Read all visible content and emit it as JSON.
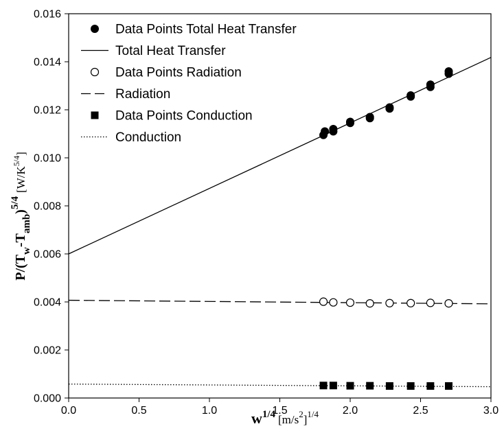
{
  "chart_data": {
    "type": "scatter",
    "xlim": [
      0.0,
      3.0
    ],
    "ylim": [
      0.0,
      0.016
    ],
    "x_ticks": [
      "0.0",
      "0.5",
      "1.0",
      "1.5",
      "2.0",
      "2.5",
      "3.0"
    ],
    "y_ticks": [
      "0.000",
      "0.002",
      "0.004",
      "0.006",
      "0.008",
      "0.010",
      "0.012",
      "0.014",
      "0.016"
    ],
    "x_tick_values": [
      0.0,
      0.5,
      1.0,
      1.5,
      2.0,
      2.5,
      3.0
    ],
    "y_tick_values": [
      0.0,
      0.002,
      0.004,
      0.006,
      0.008,
      0.01,
      0.012,
      0.014,
      0.016
    ],
    "xlabel": {
      "base": "w",
      "exp": "1/4",
      "unit_open": "[m/s",
      "unit_exp": "2",
      "unit_close": "]",
      "unit_outer_exp": "1/4"
    },
    "ylabel": {
      "prefix": "P/(T",
      "sub1": "w",
      "mid": "-T",
      "sub2": "amb",
      "close": ")",
      "exp": "5/4",
      "unit_open": "[W/K",
      "unit_exp": "5/4",
      "unit_close": "]"
    },
    "grid": false,
    "legend_position": "top-left",
    "series": [
      {
        "name": "Data Points Total Heat Transfer",
        "kind": "points",
        "marker": "filled-circle",
        "points": [
          [
            1.81,
            0.01095
          ],
          [
            1.82,
            0.0111
          ],
          [
            1.88,
            0.0112
          ],
          [
            1.88,
            0.0111
          ],
          [
            2.0,
            0.0115
          ],
          [
            2.0,
            0.01145
          ],
          [
            2.14,
            0.0117
          ],
          [
            2.14,
            0.01165
          ],
          [
            2.28,
            0.0121
          ],
          [
            2.28,
            0.01205
          ],
          [
            2.43,
            0.01255
          ],
          [
            2.43,
            0.0126
          ],
          [
            2.57,
            0.01295
          ],
          [
            2.57,
            0.01305
          ],
          [
            2.7,
            0.0135
          ],
          [
            2.7,
            0.0136
          ]
        ]
      },
      {
        "name": "Total Heat Transfer",
        "kind": "line",
        "style": "solid",
        "x": [
          0.0,
          3.0
        ],
        "y": [
          0.006,
          0.01418
        ]
      },
      {
        "name": "Data Points Radiation",
        "kind": "points",
        "marker": "open-circle",
        "points": [
          [
            1.81,
            0.00401
          ],
          [
            1.88,
            0.00398
          ],
          [
            2.0,
            0.00397
          ],
          [
            2.14,
            0.00394
          ],
          [
            2.28,
            0.00395
          ],
          [
            2.43,
            0.00395
          ],
          [
            2.57,
            0.00396
          ],
          [
            2.7,
            0.00394
          ]
        ]
      },
      {
        "name": "Radiation",
        "kind": "line",
        "style": "dashed",
        "x": [
          0.0,
          3.0
        ],
        "y": [
          0.00407,
          0.00392
        ]
      },
      {
        "name": "Data Points Conduction",
        "kind": "points",
        "marker": "filled-square",
        "points": [
          [
            1.81,
            0.00052
          ],
          [
            1.88,
            0.00052
          ],
          [
            2.0,
            0.00051
          ],
          [
            2.14,
            0.00051
          ],
          [
            2.28,
            0.0005
          ],
          [
            2.43,
            0.0005
          ],
          [
            2.57,
            0.0005
          ],
          [
            2.7,
            0.0005
          ]
        ]
      },
      {
        "name": "Conduction",
        "kind": "line",
        "style": "dotted",
        "x": [
          0.0,
          3.0
        ],
        "y": [
          0.00058,
          0.00047
        ]
      }
    ]
  }
}
